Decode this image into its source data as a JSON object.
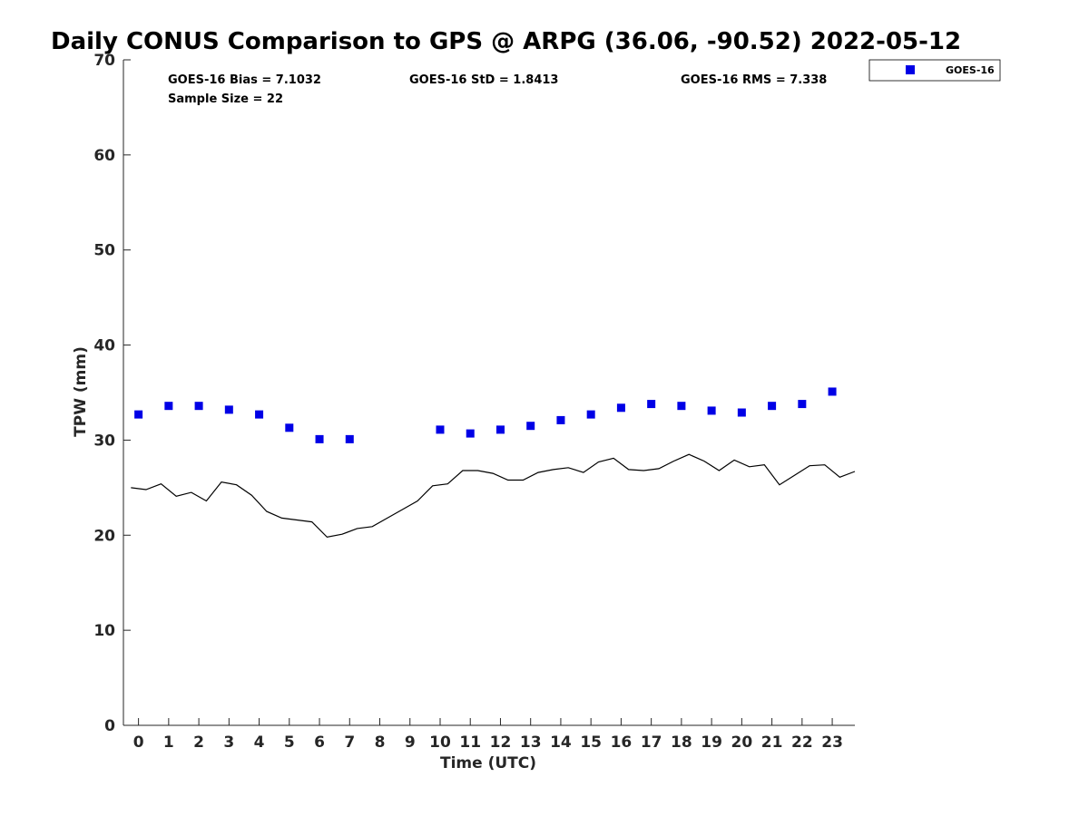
{
  "chart_data": {
    "type": "scatter",
    "title": "Daily CONUS Comparison to GPS @ ARPG (36.06, -90.52) 2022-05-12",
    "xlabel": "Time (UTC)",
    "ylabel": "TPW (mm)",
    "xlim": [
      -0.5,
      23.75
    ],
    "ylim": [
      0,
      70
    ],
    "xticks": [
      0,
      1,
      2,
      3,
      4,
      5,
      6,
      7,
      8,
      9,
      10,
      11,
      12,
      13,
      14,
      15,
      16,
      17,
      18,
      19,
      20,
      21,
      22,
      23
    ],
    "yticks": [
      0,
      10,
      20,
      30,
      40,
      50,
      60,
      70
    ],
    "grid": false,
    "legend_position": "outside-top-right",
    "stats": [
      {
        "text": "GOES-16 Bias = 7.1032"
      },
      {
        "text": "GOES-16 StD = 1.8413"
      },
      {
        "text": "GOES-16 RMS = 7.338"
      },
      {
        "text": "Sample Size = 22"
      }
    ],
    "series": [
      {
        "name": "GOES-16",
        "kind": "scatter",
        "marker": "square",
        "color": "#0000e6",
        "x": [
          0,
          1,
          2,
          3,
          4,
          5,
          6,
          7,
          10,
          11,
          12,
          13,
          14,
          15,
          16,
          17,
          18,
          19,
          20,
          21,
          22,
          23
        ],
        "y": [
          32.7,
          33.6,
          33.6,
          33.2,
          32.7,
          31.3,
          30.1,
          30.1,
          31.1,
          30.7,
          31.1,
          31.5,
          32.1,
          32.7,
          33.4,
          33.8,
          33.6,
          33.1,
          32.9,
          33.6,
          33.8,
          35.1
        ]
      },
      {
        "kind": "line",
        "color": "#000000",
        "x": [
          -0.25,
          0.25,
          0.75,
          1.25,
          1.75,
          2.25,
          2.75,
          3.25,
          3.75,
          4.25,
          4.75,
          5.25,
          5.75,
          6.25,
          6.75,
          7.25,
          7.75,
          8.25,
          8.75,
          9.25,
          9.75,
          10.25,
          10.75,
          11.25,
          11.75,
          12.25,
          12.75,
          13.25,
          13.75,
          14.25,
          14.75,
          15.25,
          15.75,
          16.25,
          16.75,
          17.25,
          17.75,
          18.25,
          18.75,
          19.25,
          19.75,
          20.25,
          20.75,
          21.25,
          21.75,
          22.25,
          22.75,
          23.25,
          23.75
        ],
        "y": [
          25.0,
          24.8,
          25.4,
          24.1,
          24.5,
          23.6,
          25.6,
          25.3,
          24.2,
          22.5,
          21.8,
          21.6,
          21.4,
          19.8,
          20.1,
          20.7,
          20.9,
          21.8,
          22.7,
          23.6,
          25.2,
          25.4,
          26.8,
          26.8,
          26.5,
          25.8,
          25.8,
          26.6,
          26.9,
          27.1,
          26.6,
          27.7,
          28.1,
          26.9,
          26.8,
          27.0,
          27.8,
          28.5,
          27.8,
          26.8,
          27.9,
          27.2,
          27.4,
          25.3,
          26.3,
          27.3,
          27.4,
          26.1,
          26.7
        ]
      }
    ]
  }
}
